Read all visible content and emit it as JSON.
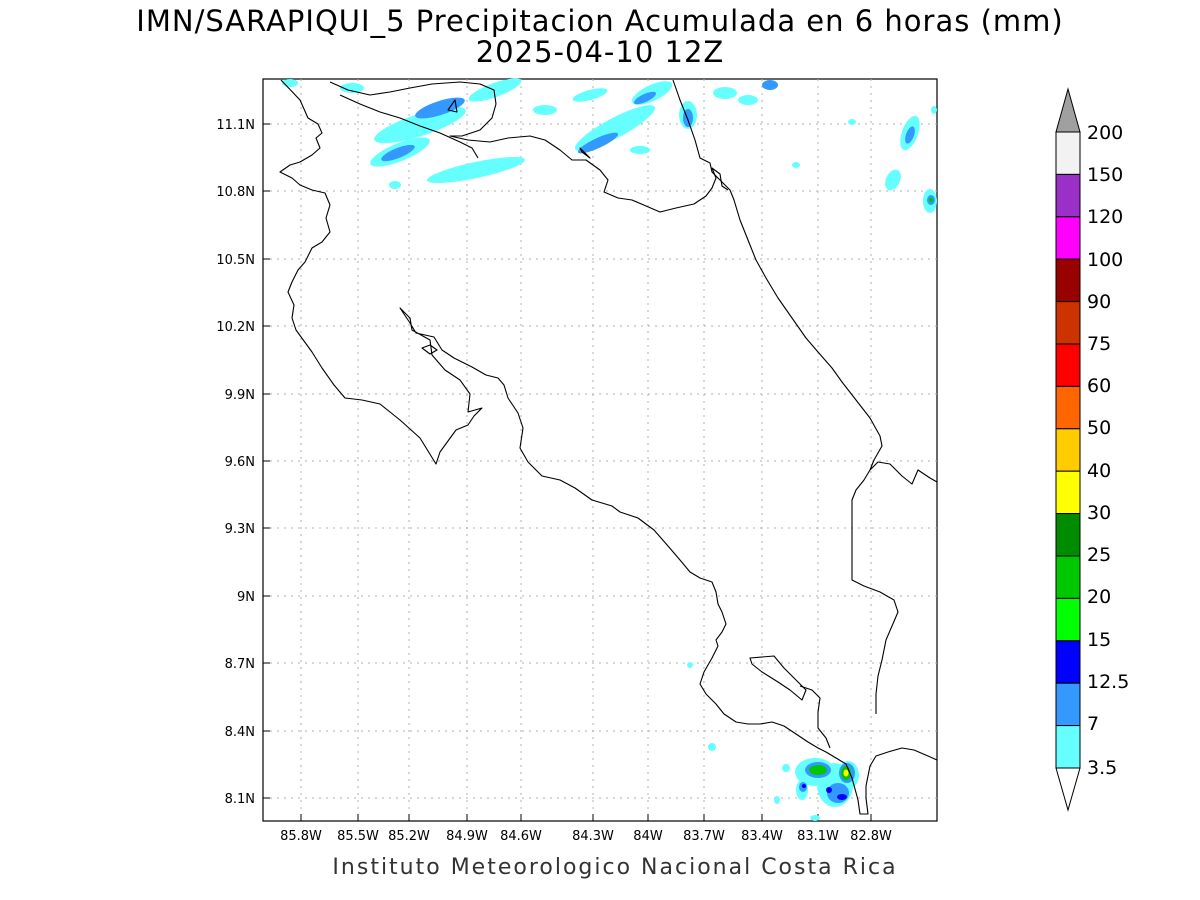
{
  "title_line1": "IMN/SARAPIQUI_5 Precipitacion Acumulada en 6 horas (mm)",
  "title_line2": "2025-04-10 12Z",
  "footer": "Instituto Meteorologico Nacional Costa Rica",
  "map": {
    "lon_labels": [
      "85.8W",
      "85.5W",
      "85.2W",
      "84.9W",
      "84.6W",
      "84.3W",
      "84W",
      "83.7W",
      "83.4W",
      "83.1W",
      "82.8W"
    ],
    "lat_labels": [
      "11.1N",
      "10.8N",
      "10.5N",
      "10.2N",
      "9.9N",
      "9.6N",
      "9.3N",
      "9N",
      "8.7N",
      "8.4N",
      "8.1N"
    ],
    "frame_color": "#000000",
    "grid": "dotted",
    "coastline_color": "#000000"
  },
  "colorbar": {
    "labels": [
      "200",
      "150",
      "120",
      "100",
      "90",
      "75",
      "60",
      "50",
      "40",
      "30",
      "25",
      "20",
      "15",
      "12.5",
      "7",
      "3.5"
    ],
    "colors": [
      "#f2f2f2",
      "#9b30c8",
      "#ff00ff",
      "#990000",
      "#cc3300",
      "#ff0000",
      "#ff6600",
      "#ffcc00",
      "#ffff00",
      "#008c00",
      "#00c800",
      "#00ff00",
      "#0000ff",
      "#3399ff",
      "#66ffff"
    ],
    "over_color": "#a0a0a0",
    "under_color": "#ffffff"
  }
}
